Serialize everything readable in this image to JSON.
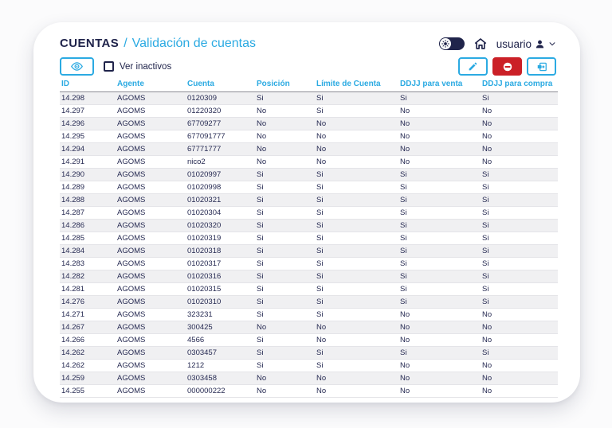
{
  "header": {
    "breadcrumb_primary": "CUENTAS",
    "breadcrumb_separator": "/",
    "breadcrumb_secondary": "Validación de cuentas",
    "user_label": "usuario"
  },
  "toolbar": {
    "show_inactive_label": "Ver inactivos",
    "show_inactive_checked": false
  },
  "icons": {
    "theme_toggle": "sun-icon",
    "home": "home-icon",
    "user": "person-icon",
    "user_menu": "chevron-down-icon",
    "view": "eye-icon",
    "edit": "pencil-icon",
    "disable": "minus-circle-icon",
    "transfer": "exit-card-icon"
  },
  "colors": {
    "navy": "#20244b",
    "accent_blue": "#2baae2",
    "danger_red": "#cb2027",
    "stripe_gray": "#f0f0f2"
  },
  "table": {
    "columns": [
      "ID",
      "Agente",
      "Cuenta",
      "Posición",
      "Límite de Cuenta",
      "DDJJ para venta",
      "DDJJ para compra"
    ],
    "rows": [
      [
        "14.298",
        "AGOMS",
        "0120309",
        "Si",
        "Si",
        "Si",
        "Si"
      ],
      [
        "14.297",
        "AGOMS",
        "01220320",
        "No",
        "Si",
        "No",
        "No"
      ],
      [
        "14.296",
        "AGOMS",
        "67709277",
        "No",
        "No",
        "No",
        "No"
      ],
      [
        "14.295",
        "AGOMS",
        "677091777",
        "No",
        "No",
        "No",
        "No"
      ],
      [
        "14.294",
        "AGOMS",
        "67771777",
        "No",
        "No",
        "No",
        "No"
      ],
      [
        "14.291",
        "AGOMS",
        "nico2",
        "No",
        "No",
        "No",
        "No"
      ],
      [
        "14.290",
        "AGOMS",
        "01020997",
        "Si",
        "Si",
        "Si",
        "Si"
      ],
      [
        "14.289",
        "AGOMS",
        "01020998",
        "Si",
        "Si",
        "Si",
        "Si"
      ],
      [
        "14.288",
        "AGOMS",
        "01020321",
        "Si",
        "Si",
        "Si",
        "Si"
      ],
      [
        "14.287",
        "AGOMS",
        "01020304",
        "Si",
        "Si",
        "Si",
        "Si"
      ],
      [
        "14.286",
        "AGOMS",
        "01020320",
        "Si",
        "Si",
        "Si",
        "Si"
      ],
      [
        "14.285",
        "AGOMS",
        "01020319",
        "Si",
        "Si",
        "Si",
        "Si"
      ],
      [
        "14.284",
        "AGOMS",
        "01020318",
        "Si",
        "Si",
        "Si",
        "Si"
      ],
      [
        "14.283",
        "AGOMS",
        "01020317",
        "Si",
        "Si",
        "Si",
        "Si"
      ],
      [
        "14.282",
        "AGOMS",
        "01020316",
        "Si",
        "Si",
        "Si",
        "Si"
      ],
      [
        "14.281",
        "AGOMS",
        "01020315",
        "Si",
        "Si",
        "Si",
        "Si"
      ],
      [
        "14.276",
        "AGOMS",
        "01020310",
        "Si",
        "Si",
        "Si",
        "Si"
      ],
      [
        "14.271",
        "AGOMS",
        "323231",
        "Si",
        "Si",
        "No",
        "No"
      ],
      [
        "14.267",
        "AGOMS",
        "300425",
        "No",
        "No",
        "No",
        "No"
      ],
      [
        "14.266",
        "AGOMS",
        "4566",
        "Si",
        "No",
        "No",
        "No"
      ],
      [
        "14.262",
        "AGOMS",
        "0303457",
        "Si",
        "Si",
        "Si",
        "Si"
      ],
      [
        "14.262",
        "AGOMS",
        "1212",
        "Si",
        "Si",
        "No",
        "No"
      ],
      [
        "14.259",
        "AGOMS",
        "0303458",
        "No",
        "No",
        "No",
        "No"
      ],
      [
        "14.255",
        "AGOMS",
        "000000222",
        "No",
        "No",
        "No",
        "No"
      ]
    ]
  }
}
